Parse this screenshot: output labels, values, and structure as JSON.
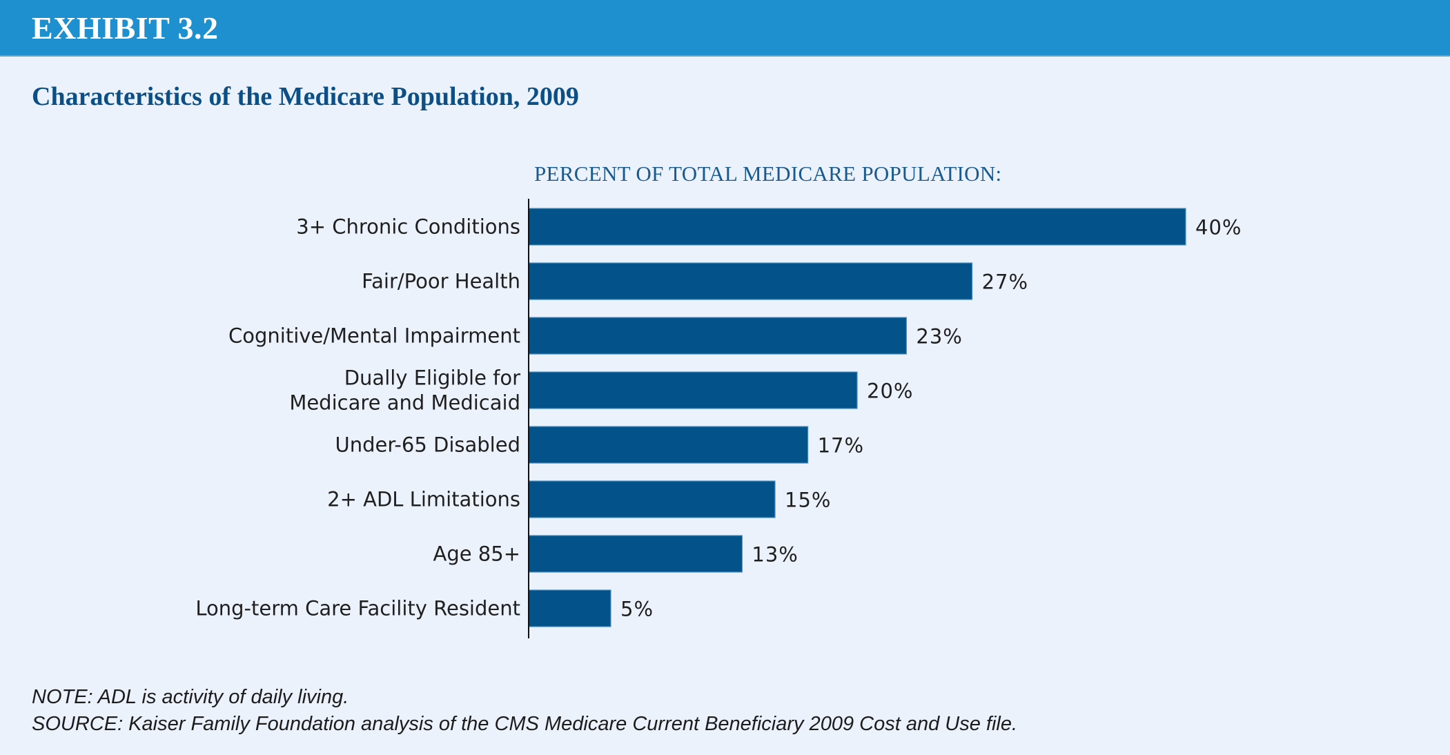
{
  "header": {
    "exhibit_label": "EXHIBIT 3.2",
    "title": "Characteristics of the Medicare Population, 2009"
  },
  "colors": {
    "header_bar": "#1e90d0",
    "background": "#ebf2fb",
    "bar": "#035289",
    "title": "#0b4f86"
  },
  "chart_data": {
    "type": "bar",
    "orientation": "horizontal",
    "title": "Characteristics of the Medicare Population, 2009",
    "subtitle": "PERCENT OF TOTAL MEDICARE POPULATION:",
    "xlabel": "",
    "ylabel": "",
    "xlim": [
      0,
      40
    ],
    "grid": false,
    "legend": "none",
    "categories": [
      [
        "3+ Chronic Conditions"
      ],
      [
        "Fair/Poor Health"
      ],
      [
        "Cognitive/Mental Impairment"
      ],
      [
        "Dually Eligible for",
        "Medicare and Medicaid"
      ],
      [
        "Under-65 Disabled"
      ],
      [
        "2+ ADL Limitations"
      ],
      [
        "Age 85+"
      ],
      [
        "Long-term Care Facility Resident"
      ]
    ],
    "values": [
      40,
      27,
      23,
      20,
      17,
      15,
      13,
      5
    ],
    "value_labels": [
      "40%",
      "27%",
      "23%",
      "20%",
      "17%",
      "15%",
      "13%",
      "5%"
    ]
  },
  "footnotes": {
    "note": "NOTE: ADL is activity of daily living.",
    "source": "SOURCE: Kaiser Family Foundation analysis of the CMS Medicare Current Beneficiary 2009 Cost and Use file."
  }
}
